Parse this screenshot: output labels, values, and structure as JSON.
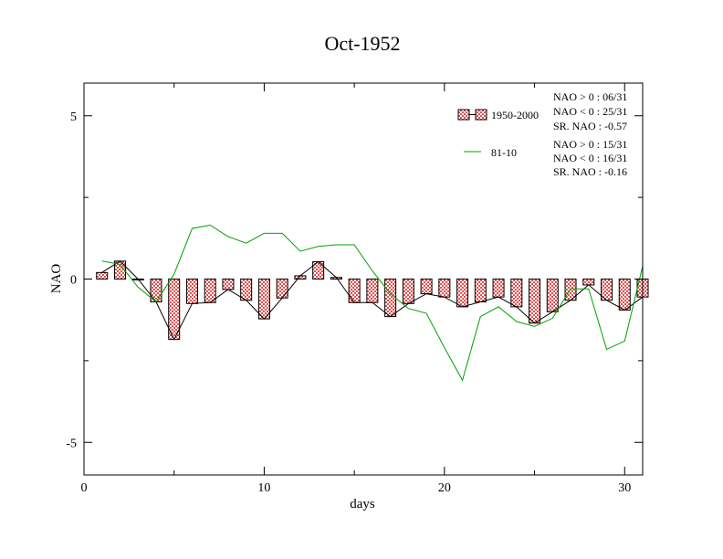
{
  "chart_data": {
    "type": "bar",
    "title": "Oct-1952",
    "xlabel": "days",
    "ylabel": "NAO",
    "xlim": [
      0,
      31
    ],
    "ylim": [
      -6,
      6
    ],
    "xticks": [
      0,
      10,
      20,
      30
    ],
    "xtick_labels": [
      "0",
      "10",
      "20",
      "30"
    ],
    "yticks": [
      -5,
      0,
      5
    ],
    "ytick_labels": [
      "-5",
      "0",
      "5"
    ],
    "grid": false,
    "legend_position": "top-right",
    "days": [
      1,
      2,
      3,
      4,
      5,
      6,
      7,
      8,
      9,
      10,
      11,
      12,
      13,
      14,
      15,
      16,
      17,
      18,
      19,
      20,
      21,
      22,
      23,
      24,
      25,
      26,
      27,
      28,
      29,
      30,
      31
    ],
    "series": [
      {
        "name": "1950-2000",
        "kind": "bar+line",
        "color": "#e05050",
        "line_color": "#000000",
        "values": [
          0.2,
          0.55,
          0.0,
          -0.7,
          -1.85,
          -0.75,
          -0.72,
          -0.32,
          -0.65,
          -1.22,
          -0.58,
          0.1,
          0.53,
          0.05,
          -0.72,
          -0.72,
          -1.15,
          -0.75,
          -0.45,
          -0.55,
          -0.85,
          -0.7,
          -0.55,
          -0.85,
          -1.35,
          -1.0,
          -0.65,
          -0.18,
          -0.65,
          -0.95,
          -0.55
        ]
      },
      {
        "name": "81-10",
        "kind": "line",
        "color": "#00a000",
        "values": [
          0.55,
          0.45,
          -0.25,
          -0.7,
          0.15,
          1.55,
          1.65,
          1.3,
          1.1,
          1.4,
          1.4,
          0.85,
          1.0,
          1.05,
          1.05,
          0.25,
          -0.45,
          -0.9,
          -1.05,
          -2.1,
          -3.1,
          -1.15,
          -0.85,
          -1.3,
          -1.45,
          -1.2,
          -0.3,
          -0.3,
          -2.15,
          -1.9,
          0.4
        ]
      }
    ],
    "annotations": [
      {
        "group": "1950-2000",
        "lines": [
          "NAO > 0 : 06/31",
          "NAO < 0 : 25/31",
          "SR. NAO : -0.57"
        ]
      },
      {
        "group": "81-10",
        "lines": [
          "NAO > 0 : 15/31",
          "NAO < 0 : 16/31",
          "SR. NAO : -0.16"
        ]
      }
    ]
  }
}
